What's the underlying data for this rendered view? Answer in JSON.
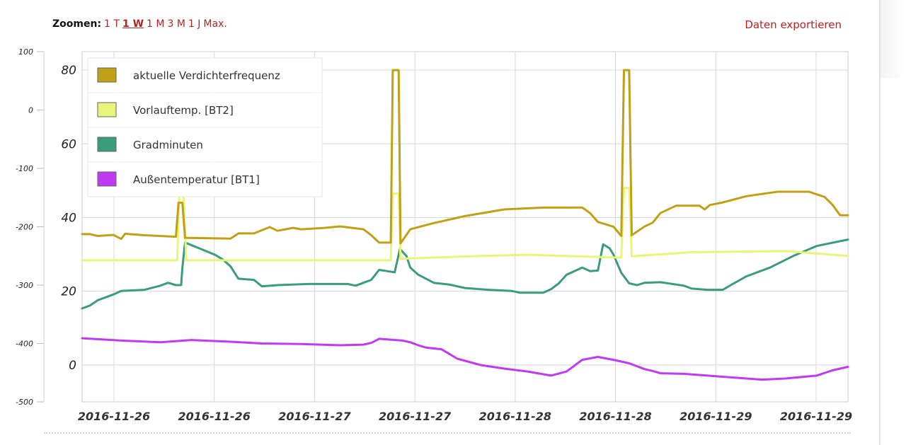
{
  "toolbar": {
    "zoom_label": "Zoomen:",
    "zoom_options": [
      "1 T",
      "1 W",
      "1 M",
      "3 M",
      "1 J",
      "Max."
    ],
    "zoom_active": "1 W",
    "export_label": "Daten exportieren"
  },
  "chart_data": {
    "type": "line",
    "x_tick_labels": [
      "2016-11-26",
      "2016-11-26",
      "2016-11-27",
      "2016-11-27",
      "2016-11-28",
      "2016-11-28",
      "2016-11-29",
      "2016-11-29"
    ],
    "x_range": [
      "2016-11-25T21:00",
      "2016-11-29T23:00"
    ],
    "y_left_ticks": [
      "100",
      "0",
      "-100",
      "-200",
      "-300",
      "-400",
      "-500"
    ],
    "y_left_range": [
      -500,
      100
    ],
    "y_right_ticks": [
      "80",
      "60",
      "40",
      "20",
      "0"
    ],
    "y_right_range": [
      -10,
      85
    ],
    "grid": true,
    "legend_position": "top-left",
    "series": [
      {
        "name": "aktuelle Verdichterfrequenz",
        "color": "#bfa016",
        "axis": "inner",
        "points": [
          [
            "2016-11-25T21:00",
            35.5
          ],
          [
            "2016-11-25T22:00",
            35.5
          ],
          [
            "2016-11-25T23:00",
            35
          ],
          [
            "2016-11-26T01:00",
            35.3
          ],
          [
            "2016-11-26T02:00",
            34.2
          ],
          [
            "2016-11-26T02:30",
            35.6
          ],
          [
            "2016-11-26T05:00",
            35.2
          ],
          [
            "2016-11-26T09:00",
            34.8
          ],
          [
            "2016-11-26T09:20",
            44
          ],
          [
            "2016-11-26T09:50",
            44
          ],
          [
            "2016-11-26T10:10",
            34.5
          ],
          [
            "2016-11-26T16:00",
            34.3
          ],
          [
            "2016-11-26T17:00",
            35.7
          ],
          [
            "2016-11-26T19:00",
            35.7
          ],
          [
            "2016-11-26T21:00",
            37.4
          ],
          [
            "2016-11-26T22:00",
            36.4
          ],
          [
            "2016-11-27T00:00",
            37.2
          ],
          [
            "2016-11-27T01:00",
            36.8
          ],
          [
            "2016-11-27T04:00",
            37.2
          ],
          [
            "2016-11-27T06:00",
            37.6
          ],
          [
            "2016-11-27T09:00",
            36.8
          ],
          [
            "2016-11-27T10:00",
            35.2
          ],
          [
            "2016-11-27T11:00",
            33.2
          ],
          [
            "2016-11-27T12:30",
            33.2
          ],
          [
            "2016-11-27T12:45",
            80
          ],
          [
            "2016-11-27T13:30",
            80
          ],
          [
            "2016-11-27T13:45",
            33
          ],
          [
            "2016-11-27T15:00",
            36.8
          ],
          [
            "2016-11-27T18:00",
            38.5
          ],
          [
            "2016-11-27T22:00",
            40.4
          ],
          [
            "2016-11-28T03:00",
            42.2
          ],
          [
            "2016-11-28T08:00",
            42.7
          ],
          [
            "2016-11-28T13:00",
            42.7
          ],
          [
            "2016-11-28T14:00",
            41.2
          ],
          [
            "2016-11-28T15:00",
            38.8
          ],
          [
            "2016-11-28T17:00",
            37.5
          ],
          [
            "2016-11-28T18:00",
            35
          ],
          [
            "2016-11-28T18:20",
            80
          ],
          [
            "2016-11-28T19:00",
            80
          ],
          [
            "2016-11-28T19:20",
            35.2
          ],
          [
            "2016-11-28T21:00",
            37.6
          ],
          [
            "2016-11-28T22:00",
            38.6
          ],
          [
            "2016-11-28T23:00",
            41.2
          ],
          [
            "2016-11-29T01:00",
            43.2
          ],
          [
            "2016-11-29T04:00",
            43.2
          ],
          [
            "2016-11-29T04:40",
            42.2
          ],
          [
            "2016-11-29T05:20",
            43.4
          ],
          [
            "2016-11-29T07:00",
            44.1
          ],
          [
            "2016-11-29T10:00",
            45.8
          ],
          [
            "2016-11-29T14:00",
            47
          ],
          [
            "2016-11-29T18:00",
            47
          ],
          [
            "2016-11-29T20:00",
            45.6
          ],
          [
            "2016-11-29T21:00",
            43.5
          ],
          [
            "2016-11-29T22:00",
            40.6
          ],
          [
            "2016-11-29T23:00",
            40.6
          ]
        ]
      },
      {
        "name": "Vorlauftemp. [BT2]",
        "color": "#e8f47a",
        "axis": "inner",
        "points": [
          [
            "2016-11-25T21:00",
            28.4
          ],
          [
            "2016-11-26T09:10",
            28.4
          ],
          [
            "2016-11-26T09:30",
            50
          ],
          [
            "2016-11-26T10:00",
            45
          ],
          [
            "2016-11-26T10:20",
            28.4
          ],
          [
            "2016-11-27T12:30",
            28.4
          ],
          [
            "2016-11-27T12:45",
            46.5
          ],
          [
            "2016-11-27T13:30",
            46.5
          ],
          [
            "2016-11-27T13:45",
            28.8
          ],
          [
            "2016-11-28T00:00",
            29.6
          ],
          [
            "2016-11-28T06:00",
            29.9
          ],
          [
            "2016-11-28T18:00",
            29.1
          ],
          [
            "2016-11-28T18:20",
            48
          ],
          [
            "2016-11-28T19:00",
            48
          ],
          [
            "2016-11-28T19:20",
            29.5
          ],
          [
            "2016-11-29T03:00",
            30.6
          ],
          [
            "2016-11-29T15:00",
            30.9
          ],
          [
            "2016-11-29T23:00",
            29.6
          ]
        ]
      },
      {
        "name": "Gradminuten",
        "color": "#3c9c7a",
        "axis": "outer",
        "points": [
          [
            "2016-11-25T21:00",
            -340
          ],
          [
            "2016-11-25T22:00",
            -335
          ],
          [
            "2016-11-25T23:00",
            -326
          ],
          [
            "2016-11-26T01:00",
            -316
          ],
          [
            "2016-11-26T02:00",
            -310
          ],
          [
            "2016-11-26T05:00",
            -308
          ],
          [
            "2016-11-26T07:00",
            -301
          ],
          [
            "2016-11-26T08:00",
            -296
          ],
          [
            "2016-11-26T09:00",
            -300
          ],
          [
            "2016-11-26T09:40",
            -300
          ],
          [
            "2016-11-26T09:50",
            -270
          ],
          [
            "2016-11-26T10:10",
            -227
          ],
          [
            "2016-11-26T12:00",
            -237
          ],
          [
            "2016-11-26T14:00",
            -248
          ],
          [
            "2016-11-26T15:00",
            -256
          ],
          [
            "2016-11-26T16:00",
            -268
          ],
          [
            "2016-11-26T17:00",
            -289
          ],
          [
            "2016-11-26T19:00",
            -291
          ],
          [
            "2016-11-26T20:00",
            -302
          ],
          [
            "2016-11-26T22:00",
            -300
          ],
          [
            "2016-11-27T02:00",
            -298
          ],
          [
            "2016-11-27T07:00",
            -298
          ],
          [
            "2016-11-27T08:00",
            -301
          ],
          [
            "2016-11-27T09:00",
            -296
          ],
          [
            "2016-11-27T10:00",
            -291
          ],
          [
            "2016-11-27T11:00",
            -274
          ],
          [
            "2016-11-27T12:00",
            -276
          ],
          [
            "2016-11-27T13:00",
            -278
          ],
          [
            "2016-11-27T13:40",
            -238
          ],
          [
            "2016-11-27T14:30",
            -250
          ],
          [
            "2016-11-27T15:00",
            -270
          ],
          [
            "2016-11-27T16:00",
            -282
          ],
          [
            "2016-11-27T18:00",
            -296
          ],
          [
            "2016-11-27T20:00",
            -299
          ],
          [
            "2016-11-27T22:00",
            -305
          ],
          [
            "2016-11-28T01:00",
            -308
          ],
          [
            "2016-11-28T04:00",
            -310
          ],
          [
            "2016-11-28T05:00",
            -313
          ],
          [
            "2016-11-28T08:00",
            -313
          ],
          [
            "2016-11-28T09:00",
            -307
          ],
          [
            "2016-11-28T10:00",
            -297
          ],
          [
            "2016-11-28T11:00",
            -282
          ],
          [
            "2016-11-28T12:00",
            -276
          ],
          [
            "2016-11-28T13:00",
            -270
          ],
          [
            "2016-11-28T14:00",
            -276
          ],
          [
            "2016-11-28T15:00",
            -275
          ],
          [
            "2016-11-28T15:40",
            -230
          ],
          [
            "2016-11-28T16:30",
            -237
          ],
          [
            "2016-11-28T17:00",
            -248
          ],
          [
            "2016-11-28T18:00",
            -279
          ],
          [
            "2016-11-28T19:00",
            -297
          ],
          [
            "2016-11-28T20:00",
            -300
          ],
          [
            "2016-11-28T21:00",
            -296
          ],
          [
            "2016-11-28T23:00",
            -295
          ],
          [
            "2016-11-29T02:00",
            -301
          ],
          [
            "2016-11-29T03:00",
            -306
          ],
          [
            "2016-11-29T05:00",
            -308
          ],
          [
            "2016-11-29T07:00",
            -308
          ],
          [
            "2016-11-29T08:00",
            -300
          ],
          [
            "2016-11-29T10:00",
            -285
          ],
          [
            "2016-11-29T13:00",
            -270
          ],
          [
            "2016-11-29T16:00",
            -250
          ],
          [
            "2016-11-29T19:00",
            -233
          ],
          [
            "2016-11-29T23:00",
            -222
          ]
        ]
      },
      {
        "name": "Außentemperatur [BT1]",
        "color": "#c03af0",
        "axis": "outer",
        "points": [
          [
            "2016-11-25T21:00",
            -391
          ],
          [
            "2016-11-26T02:00",
            -395
          ],
          [
            "2016-11-26T07:00",
            -398
          ],
          [
            "2016-11-26T11:00",
            -394
          ],
          [
            "2016-11-26T16:00",
            -397
          ],
          [
            "2016-11-26T20:00",
            -400
          ],
          [
            "2016-11-27T01:00",
            -401
          ],
          [
            "2016-11-27T06:00",
            -403
          ],
          [
            "2016-11-27T09:00",
            -402
          ],
          [
            "2016-11-27T10:00",
            -399
          ],
          [
            "2016-11-27T11:00",
            -392
          ],
          [
            "2016-11-27T14:00",
            -395
          ],
          [
            "2016-11-27T15:00",
            -398
          ],
          [
            "2016-11-27T16:00",
            -403
          ],
          [
            "2016-11-27T17:00",
            -407
          ],
          [
            "2016-11-27T19:00",
            -410
          ],
          [
            "2016-11-27T21:00",
            -426
          ],
          [
            "2016-11-28T00:00",
            -437
          ],
          [
            "2016-11-28T03:00",
            -443
          ],
          [
            "2016-11-28T06:00",
            -448
          ],
          [
            "2016-11-28T09:00",
            -455
          ],
          [
            "2016-11-28T11:00",
            -448
          ],
          [
            "2016-11-28T12:00",
            -438
          ],
          [
            "2016-11-28T13:00",
            -428
          ],
          [
            "2016-11-28T15:00",
            -423
          ],
          [
            "2016-11-28T17:00",
            -428
          ],
          [
            "2016-11-28T19:00",
            -434
          ],
          [
            "2016-11-28T21:00",
            -444
          ],
          [
            "2016-11-28T22:00",
            -447
          ],
          [
            "2016-11-28T23:00",
            -451
          ],
          [
            "2016-11-29T02:00",
            -452
          ],
          [
            "2016-11-29T05:00",
            -455
          ],
          [
            "2016-11-29T08:00",
            -458
          ],
          [
            "2016-11-29T12:00",
            -462
          ],
          [
            "2016-11-29T15:00",
            -460
          ],
          [
            "2016-11-29T19:00",
            -455
          ],
          [
            "2016-11-29T21:00",
            -446
          ],
          [
            "2016-11-29T23:00",
            -440
          ]
        ]
      }
    ]
  }
}
